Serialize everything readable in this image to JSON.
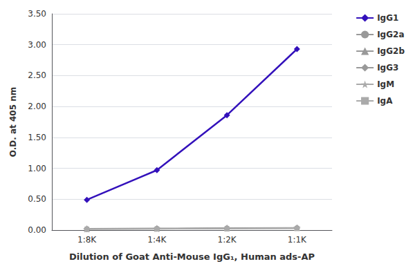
{
  "chart_data": {
    "type": "line",
    "categories": [
      "1:8K",
      "1:4K",
      "1:2K",
      "1:1K"
    ],
    "series": [
      {
        "name": "IgG1",
        "color": "#3311BB",
        "marker": "diamond",
        "values": [
          0.49,
          0.97,
          1.86,
          2.93
        ]
      },
      {
        "name": "IgG2a",
        "color": "#999999",
        "marker": "circle",
        "values": [
          0.02,
          0.025,
          0.03,
          0.035
        ]
      },
      {
        "name": "IgG2b",
        "color": "#999999",
        "marker": "triangle",
        "values": [
          0.025,
          0.03,
          0.035,
          0.04
        ]
      },
      {
        "name": "IgG3",
        "color": "#999999",
        "marker": "diamond",
        "values": [
          0.015,
          0.02,
          0.025,
          0.03
        ]
      },
      {
        "name": "IgM",
        "color": "#aaaaaa",
        "marker": "star",
        "values": [
          0.02,
          0.025,
          0.03,
          0.035
        ]
      },
      {
        "name": "IgA",
        "color": "#aaaaaa",
        "marker": "square",
        "values": [
          0.015,
          0.018,
          0.022,
          0.025
        ]
      }
    ],
    "xlabel": "Dilution of Goat Anti-Mouse IgG₁, Human ads-AP",
    "ylabel": "O.D. at 405 nm",
    "ylim": [
      0.0,
      3.5
    ],
    "yticks": [
      {
        "value": 0.0,
        "label": "0.00"
      },
      {
        "value": 0.5,
        "label": "0.50"
      },
      {
        "value": 1.0,
        "label": "1.00"
      },
      {
        "value": 1.5,
        "label": "1.50"
      },
      {
        "value": 2.0,
        "label": "2.00"
      },
      {
        "value": 2.5,
        "label": "2.50"
      },
      {
        "value": 3.0,
        "label": "3.00"
      },
      {
        "value": 3.5,
        "label": "3.50"
      }
    ],
    "grid": true,
    "legend": "right"
  }
}
